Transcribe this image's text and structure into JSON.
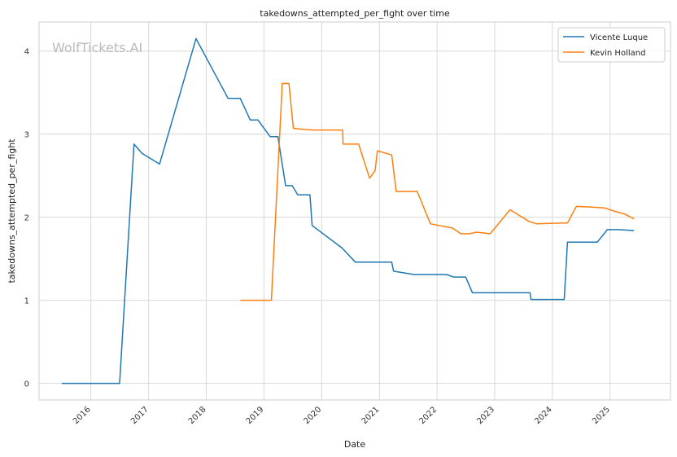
{
  "chart_data": {
    "type": "line",
    "title": "takedowns_attempted_per_fight over time",
    "xlabel": "Date",
    "ylabel": "takedowns_attempted_per_fight",
    "watermark": "WolfTickets.AI",
    "x_range": [
      "2015-02-07",
      "2026-01-18"
    ],
    "ylim": [
      -0.2,
      4.35
    ],
    "x_ticks": [
      "2016",
      "2017",
      "2018",
      "2019",
      "2020",
      "2021",
      "2022",
      "2023",
      "2024",
      "2025"
    ],
    "y_ticks": [
      "0",
      "1",
      "2",
      "3",
      "4"
    ],
    "grid": true,
    "legend_position": "top-right",
    "series": [
      {
        "name": "Vicente Luque",
        "color": "#1f77b4",
        "points": [
          [
            "2015-07-01",
            0
          ],
          [
            "2016-07-01",
            0
          ],
          [
            "2016-09-30",
            2.88
          ],
          [
            "2016-11-19",
            2.77
          ],
          [
            "2017-03-11",
            2.64
          ],
          [
            "2017-10-28",
            4.15
          ],
          [
            "2018-05-19",
            3.43
          ],
          [
            "2018-08-04",
            3.43
          ],
          [
            "2018-10-06",
            3.17
          ],
          [
            "2018-11-24",
            3.17
          ],
          [
            "2019-02-09",
            2.97
          ],
          [
            "2019-03-30",
            2.97
          ],
          [
            "2019-05-18",
            2.38
          ],
          [
            "2019-06-29",
            2.38
          ],
          [
            "2019-08-03",
            2.27
          ],
          [
            "2019-10-19",
            2.27
          ],
          [
            "2019-11-02",
            1.9
          ],
          [
            "2020-05-09",
            1.63
          ],
          [
            "2020-08-01",
            1.46
          ],
          [
            "2021-03-20",
            1.46
          ],
          [
            "2021-04-01",
            1.35
          ],
          [
            "2021-08-07",
            1.31
          ],
          [
            "2022-03-01",
            1.31
          ],
          [
            "2022-04-16",
            1.28
          ],
          [
            "2022-07-01",
            1.28
          ],
          [
            "2022-08-13",
            1.09
          ],
          [
            "2023-08-12",
            1.09
          ],
          [
            "2023-08-19",
            1.01
          ],
          [
            "2024-03-16",
            1.01
          ],
          [
            "2024-04-06",
            1.7
          ],
          [
            "2024-10-12",
            1.7
          ],
          [
            "2024-12-14",
            1.85
          ],
          [
            "2025-03-01",
            1.85
          ],
          [
            "2025-06-01",
            1.84
          ]
        ]
      },
      {
        "name": "Kevin Holland",
        "color": "#ff7f0e",
        "points": [
          [
            "2018-08-04",
            1
          ],
          [
            "2019-02-17",
            1
          ],
          [
            "2019-04-27",
            3.61
          ],
          [
            "2019-06-08",
            3.61
          ],
          [
            "2019-07-06",
            3.07
          ],
          [
            "2019-09-01",
            3.06
          ],
          [
            "2019-11-02",
            3.05
          ],
          [
            "2020-05-13",
            3.05
          ],
          [
            "2020-05-16",
            2.88
          ],
          [
            "2020-08-22",
            2.88
          ],
          [
            "2020-10-31",
            2.47
          ],
          [
            "2020-12-05",
            2.56
          ],
          [
            "2020-12-19",
            2.8
          ],
          [
            "2021-03-20",
            2.75
          ],
          [
            "2021-04-17",
            2.31
          ],
          [
            "2021-08-28",
            2.31
          ],
          [
            "2021-11-20",
            1.92
          ],
          [
            "2022-04-09",
            1.87
          ],
          [
            "2022-06-01",
            1.8
          ],
          [
            "2022-07-23",
            1.8
          ],
          [
            "2022-09-10",
            1.82
          ],
          [
            "2022-12-03",
            1.8
          ],
          [
            "2023-04-08",
            2.09
          ],
          [
            "2023-08-05",
            1.95
          ],
          [
            "2023-09-23",
            1.92
          ],
          [
            "2024-03-01",
            1.93
          ],
          [
            "2024-04-06",
            1.93
          ],
          [
            "2024-06-01",
            2.13
          ],
          [
            "2024-09-21",
            2.12
          ],
          [
            "2024-11-30",
            2.11
          ],
          [
            "2025-02-01",
            2.07
          ],
          [
            "2025-04-01",
            2.04
          ],
          [
            "2025-06-01",
            1.98
          ]
        ]
      }
    ]
  }
}
